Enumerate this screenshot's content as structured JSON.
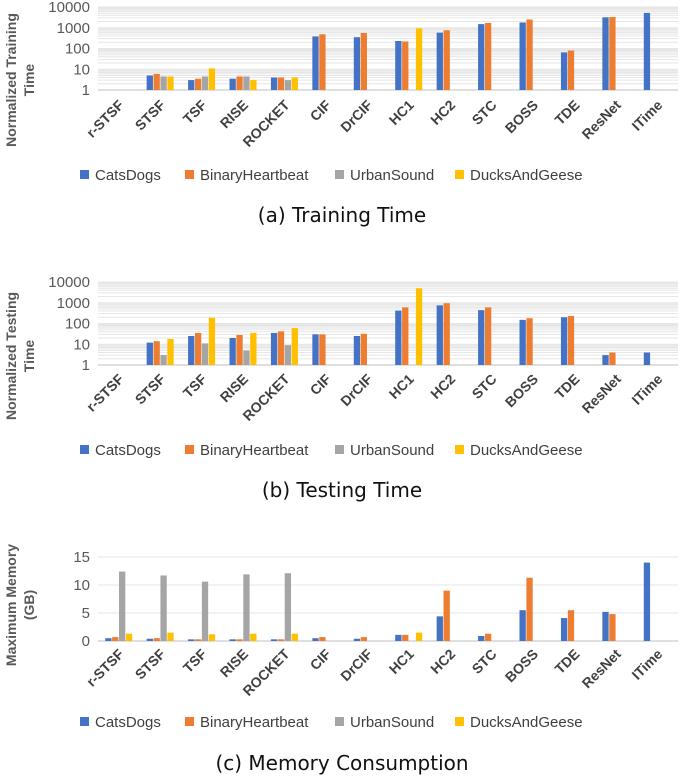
{
  "colors": {
    "CatsDogs": "#4472c4",
    "BinaryHeartbeat": "#ed7d31",
    "UrbanSound": "#a5a5a5",
    "DucksAndGeese": "#ffc000"
  },
  "chart_data": [
    {
      "type": "bar",
      "scale": "log",
      "caption": "(a)  Training Time",
      "ylabel": [
        "Normalized Training",
        "Time"
      ],
      "yticks": [
        "1",
        "10",
        "100",
        "1000",
        "10000"
      ],
      "ylim": [
        1,
        10000
      ],
      "categories": [
        "r-STSF",
        "STSF",
        "TSF",
        "RISE",
        "ROCKET",
        "CIF",
        "DrCIF",
        "HC1",
        "HC2",
        "STC",
        "BOSS",
        "TDE",
        "ResNet",
        "ITime"
      ],
      "series": [
        {
          "name": "CatsDogs",
          "values": [
            null,
            5,
            3,
            3.5,
            4,
            380,
            350,
            230,
            580,
            1500,
            1800,
            65,
            3200,
            5200
          ]
        },
        {
          "name": "BinaryHeartbeat",
          "values": [
            null,
            6,
            3.5,
            4.5,
            4,
            480,
            560,
            220,
            760,
            1700,
            2500,
            80,
            3300,
            null
          ]
        },
        {
          "name": "UrbanSound",
          "values": [
            null,
            4.5,
            4.5,
            4.5,
            3,
            null,
            null,
            null,
            null,
            null,
            null,
            null,
            null,
            null
          ]
        },
        {
          "name": "DucksAndGeese",
          "values": [
            null,
            4.5,
            11,
            3,
            4,
            null,
            null,
            950,
            null,
            null,
            null,
            null,
            null,
            null
          ]
        }
      ]
    },
    {
      "type": "bar",
      "scale": "log",
      "caption": "(b)  Testing Time",
      "ylabel": [
        "Normalized Testing",
        "Time"
      ],
      "yticks": [
        "1",
        "10",
        "100",
        "1000",
        "10000"
      ],
      "ylim": [
        1,
        10000
      ],
      "categories": [
        "r-STSF",
        "STSF",
        "TSF",
        "RISE",
        "ROCKET",
        "CIF",
        "DrCIF",
        "HC1",
        "HC2",
        "STC",
        "BOSS",
        "TDE",
        "ResNet",
        "ITime"
      ],
      "series": [
        {
          "name": "CatsDogs",
          "values": [
            null,
            12,
            25,
            20,
            35,
            30,
            25,
            420,
            750,
            440,
            150,
            200,
            3,
            4
          ]
        },
        {
          "name": "BinaryHeartbeat",
          "values": [
            null,
            14,
            35,
            28,
            42,
            30,
            32,
            600,
            950,
            600,
            180,
            230,
            4,
            null
          ]
        },
        {
          "name": "UrbanSound",
          "values": [
            null,
            3,
            11,
            5,
            9,
            null,
            null,
            null,
            null,
            null,
            null,
            null,
            null,
            null
          ]
        },
        {
          "name": "DucksAndGeese",
          "values": [
            null,
            18,
            190,
            35,
            60,
            null,
            null,
            5000,
            null,
            null,
            null,
            null,
            null,
            null
          ]
        }
      ]
    },
    {
      "type": "bar",
      "scale": "linear",
      "caption": "(c)  Memory Consumption",
      "ylabel": [
        "Maximum Memory",
        "(GB)"
      ],
      "yticks": [
        "0",
        "5",
        "10",
        "15"
      ],
      "ylim": [
        0,
        15
      ],
      "categories": [
        "r-STSF",
        "STSF",
        "TSF",
        "RISE",
        "ROCKET",
        "CIF",
        "DrCIF",
        "HC1",
        "HC2",
        "STC",
        "BOSS",
        "TDE",
        "ResNet",
        "ITime"
      ],
      "series": [
        {
          "name": "CatsDogs",
          "values": [
            0.5,
            0.4,
            0.3,
            0.3,
            0.3,
            0.5,
            0.4,
            1.1,
            4.4,
            0.9,
            5.5,
            4.1,
            5.2,
            14.0
          ]
        },
        {
          "name": "BinaryHeartbeat",
          "values": [
            0.7,
            0.5,
            0.3,
            0.3,
            0.3,
            0.7,
            0.7,
            1.1,
            9.0,
            1.3,
            11.3,
            5.5,
            4.8,
            null
          ]
        },
        {
          "name": "UrbanSound",
          "values": [
            12.4,
            11.7,
            10.6,
            11.9,
            12.1,
            null,
            null,
            null,
            null,
            null,
            null,
            null,
            null,
            null
          ]
        },
        {
          "name": "DucksAndGeese",
          "values": [
            1.3,
            1.5,
            1.2,
            1.3,
            1.3,
            null,
            null,
            1.5,
            null,
            null,
            null,
            null,
            null,
            null
          ]
        }
      ]
    }
  ]
}
